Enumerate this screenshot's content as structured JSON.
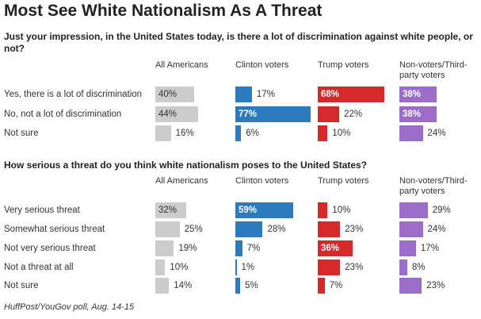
{
  "title": "Most See White Nationalism As A Threat",
  "source": "HuffPost/YouGov poll, Aug. 14-15",
  "colors": {
    "All Americans": "#cccccc",
    "Clinton voters": "#2c7bbf",
    "Trump voters": "#d62a2a",
    "Non-voters/Third-party voters": "#9b6dc8"
  },
  "columns": [
    "All Americans",
    "Clinton voters",
    "Trump voters",
    "Non-voters/Third-party voters"
  ],
  "chart_data": [
    {
      "type": "bar",
      "title": "Just your impression, in the United States today, is there a lot of discrimination against white people, or not?",
      "categories": [
        "Yes, there is a lot of discrimination",
        "No, not a lot of discrimination",
        "Not sure"
      ],
      "series": [
        {
          "name": "All Americans",
          "values": [
            40,
            44,
            16
          ]
        },
        {
          "name": "Clinton voters",
          "values": [
            17,
            77,
            6
          ]
        },
        {
          "name": "Trump voters",
          "values": [
            68,
            22,
            10
          ]
        },
        {
          "name": "Non-voters/Third-party voters",
          "values": [
            38,
            38,
            24
          ]
        }
      ],
      "ylim": [
        0,
        100
      ]
    },
    {
      "type": "bar",
      "title": "How serious a threat do you think white nationalism poses to the United States?",
      "categories": [
        "Very serious threat",
        "Somewhat serious threat",
        "Not very serious threat",
        "Not a threat at all",
        "Not sure"
      ],
      "series": [
        {
          "name": "All Americans",
          "values": [
            32,
            25,
            19,
            10,
            14
          ]
        },
        {
          "name": "Clinton voters",
          "values": [
            59,
            28,
            7,
            1,
            5
          ]
        },
        {
          "name": "Trump voters",
          "values": [
            10,
            23,
            36,
            23,
            7
          ]
        },
        {
          "name": "Non-voters/Third-party voters",
          "values": [
            29,
            24,
            17,
            8,
            23
          ]
        }
      ],
      "ylim": [
        0,
        100
      ]
    }
  ]
}
